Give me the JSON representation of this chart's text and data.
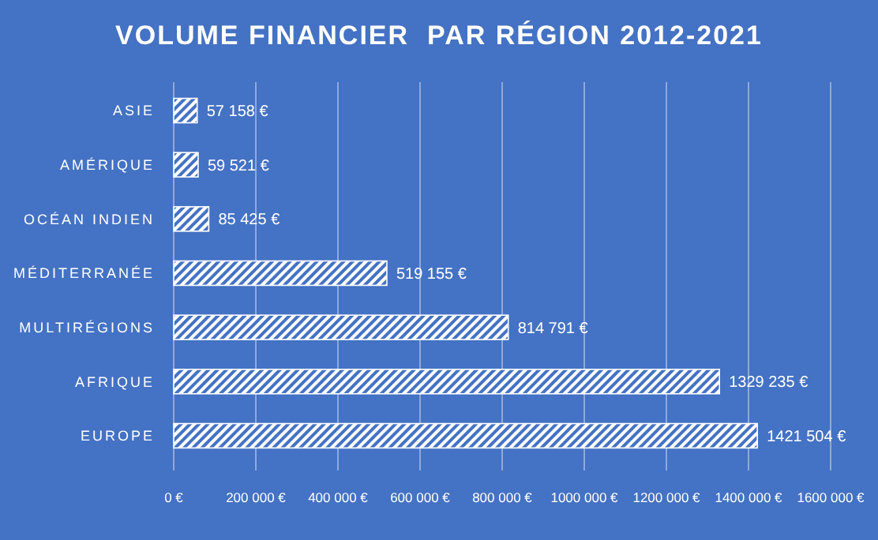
{
  "chart_data": {
    "type": "bar",
    "orientation": "horizontal",
    "title": "VOLUME FINANCIER  PAR RÉGION 2012-2021",
    "categories": [
      "ASIE",
      "AMÉRIQUE",
      "OCÉAN INDIEN",
      "MÉDITERRANÉE",
      "MULTIRÉGIONS",
      "AFRIQUE",
      "EUROPE"
    ],
    "values": [
      57158,
      59521,
      85425,
      519155,
      814791,
      1329235,
      1421504
    ],
    "value_labels": [
      "57 158 €",
      "59 521 €",
      "85 425 €",
      "519 155 €",
      "814 791 €",
      "1329 235 €",
      "1421 504 €"
    ],
    "color": "#ffffff",
    "xlim": [
      0,
      1600000
    ],
    "xticks": [
      {
        "value": 0,
        "label": "0 €"
      },
      {
        "value": 200000,
        "label": "200 000 €"
      },
      {
        "value": 400000,
        "label": "400 000 €"
      },
      {
        "value": 600000,
        "label": "600 000 €"
      },
      {
        "value": 800000,
        "label": "800 000 €"
      },
      {
        "value": 1000000,
        "label": "1000 000 €"
      },
      {
        "value": 1200000,
        "label": "1200 000 €"
      },
      {
        "value": 1400000,
        "label": "1400 000 €"
      },
      {
        "value": 1600000,
        "label": "1600 000 €"
      }
    ],
    "grid": "x"
  }
}
